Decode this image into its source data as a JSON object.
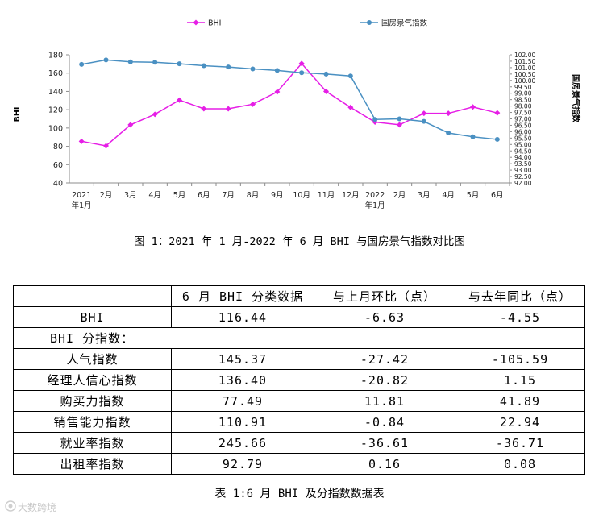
{
  "chart_data": {
    "type": "line",
    "categories": [
      "2021年1月",
      "2月",
      "3月",
      "4月",
      "5月",
      "6月",
      "7月",
      "8月",
      "9月",
      "10月",
      "11月",
      "12月",
      "2022年1月",
      "2月",
      "3月",
      "4月",
      "5月",
      "6月"
    ],
    "category_lines": [
      [
        "2021",
        "年1月"
      ],
      [
        "2月"
      ],
      [
        "3月"
      ],
      [
        "4月"
      ],
      [
        "5月"
      ],
      [
        "6月"
      ],
      [
        "7月"
      ],
      [
        "8月"
      ],
      [
        "9月"
      ],
      [
        "10月"
      ],
      [
        "11月"
      ],
      [
        "12月"
      ],
      [
        "2022",
        "年1月"
      ],
      [
        "2月"
      ],
      [
        "3月"
      ],
      [
        "4月"
      ],
      [
        "5月"
      ],
      [
        "6月"
      ]
    ],
    "series": [
      {
        "name": "BHI",
        "axis": "left",
        "color": "#e61ee6",
        "marker": "diamond",
        "values": [
          85.5,
          80.5,
          103.5,
          115.0,
          130.5,
          121.0,
          121.0,
          126.0,
          139.5,
          170.5,
          140.0,
          122.5,
          106.5,
          103.5,
          116.0,
          116.0,
          123.0,
          116.44
        ]
      },
      {
        "name": "国房景气指数",
        "axis": "right",
        "color": "#4a90c2",
        "marker": "circle",
        "values": [
          101.25,
          101.6,
          101.45,
          101.42,
          101.3,
          101.15,
          101.05,
          100.9,
          100.78,
          100.6,
          100.5,
          100.35,
          96.95,
          97.0,
          96.8,
          95.9,
          95.6,
          95.4
        ]
      }
    ],
    "left_axis": {
      "label": "BHI",
      "ylim": [
        40,
        180
      ],
      "ticks": [
        "40",
        "60",
        "80",
        "100",
        "120",
        "140",
        "160",
        "180"
      ]
    },
    "right_axis": {
      "label": "国房景气指数",
      "ylim": [
        92.0,
        102.0
      ],
      "ticks": [
        "92.00",
        "92.50",
        "93.00",
        "93.50",
        "94.00",
        "94.50",
        "95.00",
        "95.50",
        "96.00",
        "96.50",
        "97.00",
        "97.50",
        "98.00",
        "98.50",
        "99.00",
        "99.50",
        "100.00",
        "100.50",
        "101.00",
        "101.50",
        "102.00"
      ]
    },
    "legend_position": "top",
    "grid": false
  },
  "figure_caption": "图 1：2021 年 1 月-2022 年 6 月 BHI 与国房景气指数对比图",
  "table": {
    "headers": [
      "",
      "6 月 BHI 分类数据",
      "与上月环比（点）",
      "与去年同比（点）"
    ],
    "bhi_row": {
      "label": "BHI",
      "values": [
        "116.44",
        "-6.63",
        "-4.55"
      ]
    },
    "section_label": "BHI 分指数：",
    "rows": [
      {
        "label": "人气指数",
        "values": [
          "145.37",
          "-27.42",
          "-105.59"
        ]
      },
      {
        "label": "经理人信心指数",
        "values": [
          "136.40",
          "-20.82",
          "1.15"
        ]
      },
      {
        "label": "购买力指数",
        "values": [
          "77.49",
          "11.81",
          "41.89"
        ]
      },
      {
        "label": "销售能力指数",
        "values": [
          "110.91",
          "-0.84",
          "22.94"
        ]
      },
      {
        "label": "就业率指数",
        "values": [
          "245.66",
          "-36.61",
          "-36.71"
        ]
      },
      {
        "label": "出租率指数",
        "values": [
          "92.79",
          "0.16",
          "0.08"
        ]
      }
    ]
  },
  "table_caption": "表 1:6 月 BHI 及分指数数据表",
  "watermark": "大数跨境"
}
